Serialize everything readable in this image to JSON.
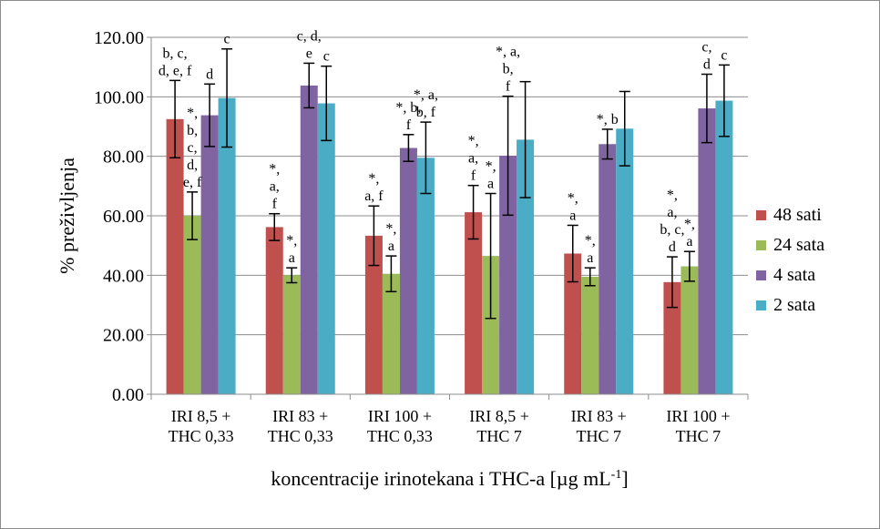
{
  "chart_data": {
    "type": "bar",
    "title": "",
    "ylabel": "% preživljenja",
    "xlabel": {
      "text": "koncentracije irinotekana i THC-a [µg mL",
      "sup": "-1",
      "suffix": "]"
    },
    "ylim": [
      0,
      120
    ],
    "yticks": [
      "0.00",
      "20.00",
      "40.00",
      "60.00",
      "80.00",
      "100.00",
      "120.00"
    ],
    "grid": true,
    "legend_position": "right",
    "categories": [
      [
        "IRI 8,5 +",
        "THC 0,33"
      ],
      [
        "IRI 83 +",
        "THC 0,33"
      ],
      [
        "IRI 100 +",
        "THC 0,33"
      ],
      [
        "IRI 8,5 +",
        "THC 7"
      ],
      [
        "IRI 83 +",
        "THC 7"
      ],
      [
        "IRI 100 +",
        "THC 7"
      ]
    ],
    "series": [
      {
        "name": "48 sati",
        "color": "#c0504d",
        "values": [
          92.5,
          56.2,
          53.3,
          61.2,
          47.3,
          37.7
        ],
        "errors": [
          13.0,
          4.5,
          10.0,
          9.0,
          9.5,
          8.5
        ]
      },
      {
        "name": "24 sata",
        "color": "#9bbb59",
        "values": [
          60.0,
          40.0,
          40.5,
          46.5,
          39.5,
          43.0
        ],
        "errors": [
          8.0,
          2.5,
          6.0,
          21.0,
          3.0,
          5.0
        ]
      },
      {
        "name": "4 sata",
        "color": "#8064a2",
        "values": [
          93.8,
          103.8,
          82.8,
          80.2,
          84.1,
          96.1
        ],
        "errors": [
          10.5,
          7.5,
          4.5,
          20.0,
          5.0,
          11.5
        ]
      },
      {
        "name": "2 sata",
        "color": "#4bacc6",
        "values": [
          99.6,
          97.8,
          79.5,
          85.6,
          89.3,
          98.7
        ],
        "errors": [
          16.5,
          12.5,
          12.0,
          19.5,
          12.5,
          12.0
        ]
      }
    ],
    "annotations": [
      [
        [
          "b, c,",
          "d, e, f"
        ],
        [
          "*,",
          "b,",
          "c,",
          "d,",
          "e, f"
        ],
        [
          "d"
        ],
        [
          "c"
        ]
      ],
      [
        [
          "*,",
          "a,",
          "f"
        ],
        [
          "*,",
          "a"
        ],
        [
          "c, d,",
          "e"
        ],
        [
          "c"
        ]
      ],
      [
        [
          "*,",
          "a, f"
        ],
        [
          "*,",
          "a"
        ],
        [
          "*, b,",
          "f"
        ],
        [
          "*, a,",
          "b, f"
        ]
      ],
      [
        [
          "*,",
          "a,",
          "f"
        ],
        [
          "*,",
          "a"
        ],
        [
          "*, a,",
          "b,",
          "f"
        ],
        []
      ],
      [
        [
          "*,",
          "a"
        ],
        [
          "*,",
          "a"
        ],
        [
          "*, b"
        ],
        []
      ],
      [
        [
          "*,",
          "a,",
          "b, c,",
          "d"
        ],
        [
          "*,",
          "a"
        ],
        [
          "c,",
          "d"
        ],
        [
          "c"
        ]
      ]
    ]
  }
}
